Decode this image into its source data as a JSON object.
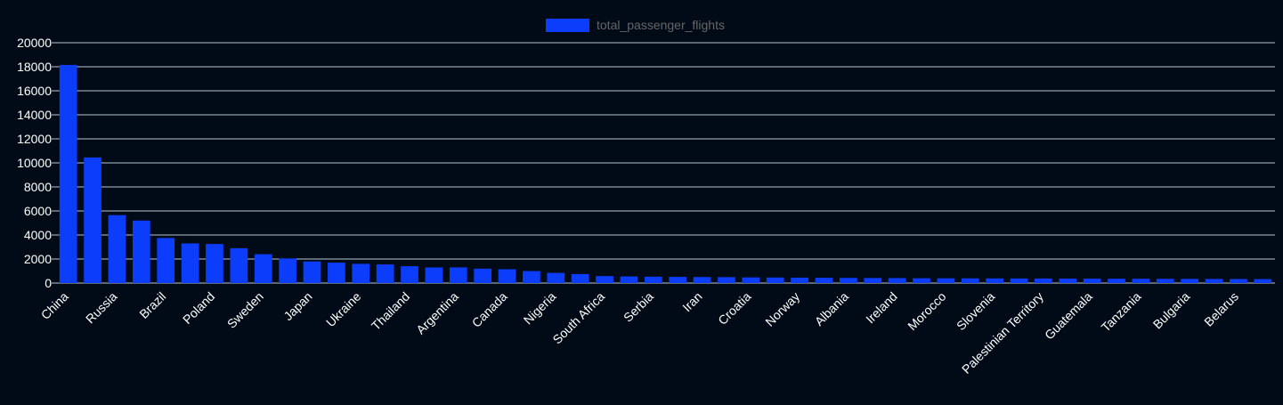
{
  "chart_data": {
    "type": "bar",
    "legend": {
      "label": "total_passenger_flights",
      "position": "top-center"
    },
    "series": [
      {
        "name": "total_passenger_flights",
        "color": "#0b3dfa",
        "values": [
          18150,
          10450,
          5650,
          5200,
          3750,
          3300,
          3250,
          2900,
          2400,
          2050,
          1800,
          1700,
          1600,
          1550,
          1400,
          1300,
          1300,
          1200,
          1150,
          1000,
          850,
          750,
          580,
          550,
          530,
          510,
          500,
          490,
          470,
          460,
          450,
          440,
          430,
          420,
          410,
          400,
          395,
          390,
          385,
          380,
          375,
          370,
          365,
          360,
          355,
          350,
          345,
          340,
          335,
          330
        ]
      }
    ],
    "categories": [
      "China",
      "",
      "Russia",
      "",
      "Brazil",
      "",
      "Poland",
      "",
      "Sweden",
      "",
      "Japan",
      "",
      "Ukraine",
      "",
      "Thailand",
      "",
      "Argentina",
      "",
      "Canada",
      "",
      "Nigeria",
      "",
      "South Africa",
      "",
      "Serbia",
      "",
      "Iran",
      "",
      "Croatia",
      "",
      "Norway",
      "",
      "Albania",
      "",
      "Ireland",
      "",
      "Morocco",
      "",
      "Slovenia",
      "",
      "Palestinian Territory",
      "",
      "Guatemala",
      "",
      "Tanzania",
      "",
      "Bulgaria",
      "",
      "Belarus",
      ""
    ],
    "y_ticks": [
      "0",
      "2000",
      "4000",
      "6000",
      "8000",
      "10000",
      "12000",
      "14000",
      "16000",
      "18000",
      "20000"
    ],
    "ylim": [
      0,
      20000
    ],
    "grid": true
  }
}
